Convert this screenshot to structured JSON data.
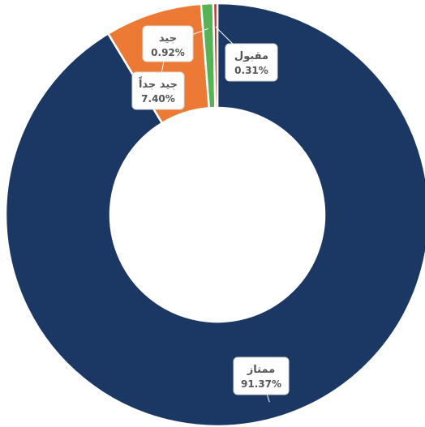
{
  "chart_data": {
    "type": "pie",
    "donut": true,
    "categories": [
      "ممتاز",
      "جيد جداً",
      "جيد",
      "مقبول"
    ],
    "values": [
      91.37,
      7.4,
      0.92,
      0.31
    ],
    "labels": [
      "91.37%",
      "7.40%",
      "0.92%",
      "0.31%"
    ],
    "colors": [
      "#1b3764",
      "#ec7a34",
      "#55b255",
      "#c0302c"
    ],
    "start_angle_deg": 0,
    "direction": "clockwise",
    "legend": "none",
    "title": ""
  }
}
